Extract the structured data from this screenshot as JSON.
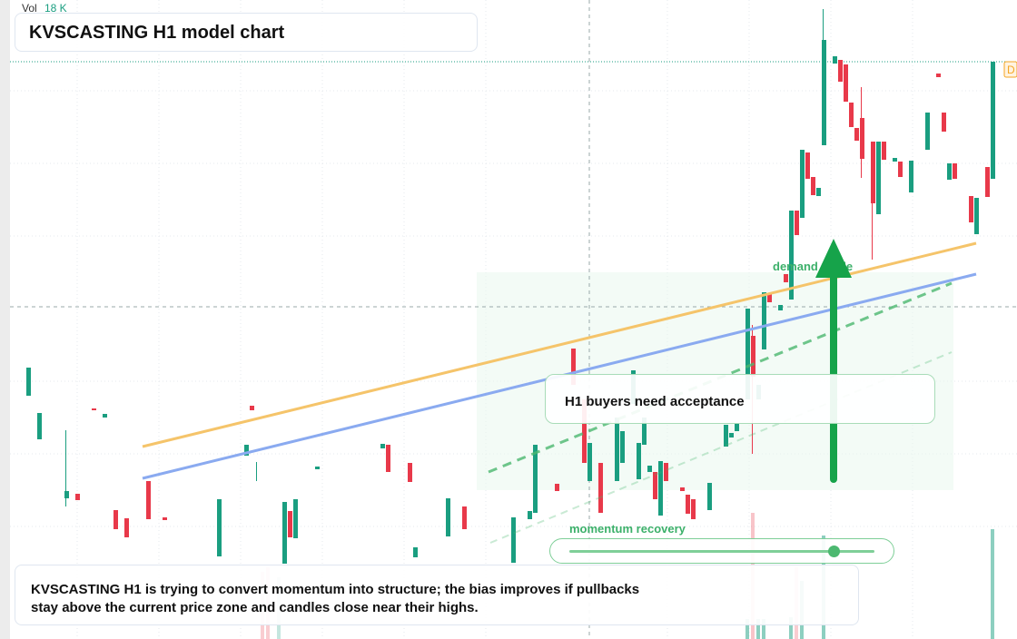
{
  "header": {
    "vol_label": "Vol",
    "vol_value": "18 K",
    "title": "KVSCASTING H1 model chart"
  },
  "annotations": {
    "demand": "demand guide",
    "callout": "H1 buyers need acceptance",
    "slider_label": "momentum recovery",
    "price_tag": "D"
  },
  "summary": {
    "line1": "KVSCASTING H1 is trying to convert momentum into structure; the bias improves if pullbacks",
    "line2": "stay above the current price zone and candles close near their highs."
  }
}
